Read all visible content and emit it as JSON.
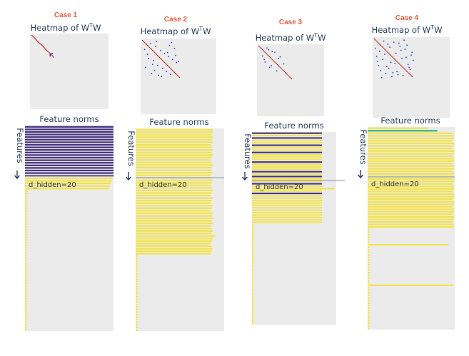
{
  "chart_data": [
    {
      "case_label": "Case 1",
      "heatmap": {
        "title": "Heatmap of W",
        "title_sup": "T",
        "title_tail": "W",
        "type": "heatmap",
        "diagonal_length": 20,
        "offdiag_points": [
          [
            16,
            17
          ],
          [
            17,
            16
          ],
          [
            18,
            16
          ],
          [
            16,
            18
          ]
        ]
      },
      "bars": {
        "type": "bar",
        "title": "Feature norms",
        "ylabel": "Features",
        "hline_label": "d_hidden=20",
        "values": [
          1.0,
          1.0,
          1.0,
          1.0,
          1.0,
          1.0,
          1.0,
          1.0,
          1.0,
          1.0,
          1.0,
          1.0,
          1.0,
          1.0,
          1.0,
          1.0,
          1.0,
          1.0,
          1.0,
          1.0,
          0.99,
          0.98,
          0.97,
          0.96,
          0.95,
          0.03,
          0.03,
          0.02,
          0.02,
          0.02,
          0.02,
          0.02,
          0.02,
          0.02,
          0.02,
          0.02,
          0.02,
          0.02,
          0.02,
          0.02,
          0.02,
          0.02,
          0.02,
          0.02,
          0.02,
          0.02,
          0.02,
          0.02,
          0.02,
          0.02,
          0.02,
          0.02,
          0.02,
          0.02,
          0.02,
          0.02,
          0.02,
          0.02,
          0.02,
          0.02,
          0.02,
          0.02,
          0.02,
          0.02,
          0.02,
          0.02,
          0.02,
          0.02,
          0.02,
          0.02,
          0.02,
          0.02,
          0.02,
          0.02,
          0.02,
          0.02,
          0.02,
          0.02,
          0.02,
          0.02
        ],
        "colors": [
          "#46327e",
          "#46327e",
          "#46327e",
          "#46327e",
          "#46327e",
          "#46327e",
          "#46327e",
          "#46327e",
          "#46327e",
          "#46327e",
          "#46327e",
          "#46327e",
          "#46327e",
          "#46327e",
          "#46327e",
          "#46327e",
          "#46327e",
          "#46327e",
          "#46327e",
          "#46327e",
          "#f2e34c",
          "#f2e34c",
          "#f2e34c",
          "#f2e34c",
          "#f2e34c"
        ]
      }
    },
    {
      "case_label": "Case 2",
      "heatmap": {
        "title": "Heatmap of W",
        "title_sup": "T",
        "title_tail": "W",
        "type": "heatmap",
        "diagonal_length": 38,
        "offdiag_points": [
          [
            2,
            9
          ],
          [
            5,
            14
          ],
          [
            8,
            3
          ],
          [
            11,
            20
          ],
          [
            13,
            6
          ],
          [
            15,
            25
          ],
          [
            18,
            10
          ],
          [
            20,
            28
          ],
          [
            22,
            13
          ],
          [
            24,
            31
          ],
          [
            26,
            16
          ],
          [
            28,
            34
          ],
          [
            30,
            19
          ],
          [
            32,
            8
          ],
          [
            34,
            22
          ],
          [
            3,
            27
          ],
          [
            9,
            33
          ],
          [
            14,
            1
          ],
          [
            19,
            36
          ],
          [
            27,
            5
          ],
          [
            6,
            18
          ],
          [
            10,
            24
          ],
          [
            25,
            12
          ],
          [
            29,
            2
          ],
          [
            33,
            15
          ],
          [
            36,
            21
          ],
          [
            12,
            30
          ],
          [
            16,
            35
          ]
        ]
      },
      "bars": {
        "type": "bar",
        "title": "Feature norms",
        "ylabel": "Features",
        "hline_label": "d_hidden=20",
        "values": [
          0.87,
          0.87,
          0.86,
          0.87,
          0.86,
          0.87,
          0.85,
          0.86,
          0.87,
          0.86,
          0.87,
          0.86,
          0.85,
          0.86,
          0.87,
          0.86,
          0.86,
          0.87,
          0.85,
          0.86,
          0.87,
          0.86,
          0.85,
          0.86,
          0.87,
          0.86,
          0.85,
          0.87,
          0.86,
          0.85,
          0.87,
          0.86,
          0.85,
          0.87,
          0.86,
          0.88,
          0.86,
          0.87,
          0.85,
          0.86,
          0.87,
          0.86,
          0.9,
          0.87,
          0.86,
          0.85,
          0.86,
          0.87,
          0.86,
          0.85,
          0.02,
          0.02,
          0.02,
          0.02,
          0.02,
          0.02,
          0.02,
          0.02,
          0.02,
          0.02,
          0.02,
          0.02,
          0.02,
          0.02,
          0.02,
          0.02,
          0.02,
          0.02,
          0.02,
          0.02,
          0.02,
          0.02,
          0.02,
          0.02,
          0.02,
          0.02,
          0.02,
          0.02,
          0.02,
          0.02
        ],
        "colors": [
          "#f2e34c"
        ]
      }
    },
    {
      "case_label": "Case 3",
      "heatmap": {
        "title": "Heatmap of W",
        "title_sup": "T",
        "title_tail": "W",
        "type": "heatmap",
        "diagonal_length": 38,
        "offdiag_points": [
          [
            4,
            11
          ],
          [
            11,
            4
          ],
          [
            7,
            18
          ],
          [
            18,
            7
          ],
          [
            12,
            24
          ],
          [
            24,
            12
          ],
          [
            15,
            6
          ],
          [
            6,
            15
          ],
          [
            20,
            28
          ],
          [
            28,
            20
          ],
          [
            9,
            2
          ],
          [
            22,
            14
          ],
          [
            14,
            22
          ]
        ]
      },
      "bars": {
        "type": "bar",
        "title": "Feature norms",
        "ylabel": "Features",
        "hline_label": "d_hidden=20",
        "values": [
          0.83,
          0.83,
          0.83,
          0.83,
          0.83,
          0.83,
          0.83,
          0.83,
          0.83,
          0.83,
          0.83,
          0.83,
          0.83,
          0.83,
          0.83,
          0.83,
          0.83,
          0.83,
          0.83,
          0.83,
          0.83,
          0.83,
          0.83,
          0.98,
          0.83,
          0.83,
          0.83,
          0.83,
          0.83,
          0.83,
          0.83,
          0.83,
          0.83,
          0.83,
          0.83,
          0.83,
          0.83,
          0.83,
          0.02,
          0.02,
          0.02,
          0.02,
          0.02,
          0.02,
          0.02,
          0.02,
          0.02,
          0.02,
          0.02,
          0.02,
          0.02,
          0.02,
          0.02,
          0.02,
          0.02,
          0.02,
          0.02,
          0.02,
          0.02,
          0.02,
          0.02,
          0.02,
          0.02,
          0.02,
          0.02,
          0.02,
          0.02,
          0.02,
          0.02,
          0.02,
          0.02,
          0.02,
          0.02,
          0.02,
          0.02,
          0.02,
          0.02,
          0.02,
          0.02,
          0.02
        ],
        "colors": [
          "#46327e",
          "#f2e34c",
          "#46327e",
          "#f2e34c",
          "#f2e34c",
          "#46327e",
          "#f2e34c",
          "#f2e34c",
          "#46327e",
          "#f2e34c",
          "#f2e34c",
          "#f2e34c",
          "#46327e",
          "#f2e34c",
          "#f2e34c",
          "#f2e34c",
          "#46327e",
          "#f2e34c",
          "#46327e",
          "#f2e34c",
          "#f2e34c",
          "#46327e",
          "#f2e34c",
          "#f2e34c",
          "#f2e34c",
          "#46327e",
          "#f2e34c",
          "#f2e34c",
          "#f2e34c",
          "#f2e34c",
          "#f2e34c",
          "#f2e34c",
          "#f2e34c",
          "#f2e34c",
          "#f2e34c",
          "#f2e34c",
          "#f2e34c",
          "#f2e34c"
        ]
      }
    },
    {
      "case_label": "Case 4",
      "heatmap": {
        "title": "Heatmap of W",
        "title_sup": "T",
        "title_tail": "W",
        "type": "heatmap",
        "diagonal_length": 38,
        "offdiag_points": [
          [
            3,
            22
          ],
          [
            6,
            31
          ],
          [
            9,
            2
          ],
          [
            12,
            27
          ],
          [
            15,
            8
          ],
          [
            18,
            33
          ],
          [
            21,
            14
          ],
          [
            24,
            4
          ],
          [
            27,
            19
          ],
          [
            30,
            10
          ],
          [
            33,
            25
          ],
          [
            36,
            16
          ],
          [
            5,
            12
          ],
          [
            14,
            29
          ],
          [
            23,
            35
          ],
          [
            32,
            6
          ],
          [
            8,
            20
          ],
          [
            17,
            37
          ],
          [
            26,
            11
          ],
          [
            35,
            30
          ],
          [
            2,
            17
          ],
          [
            11,
            34
          ],
          [
            20,
            24
          ],
          [
            29,
            1
          ],
          [
            38,
            21
          ],
          [
            1,
            9
          ],
          [
            10,
            15
          ],
          [
            19,
            3
          ],
          [
            28,
            36
          ],
          [
            37,
            13
          ],
          [
            4,
            26
          ],
          [
            13,
            5
          ],
          [
            22,
            32
          ],
          [
            31,
            18
          ],
          [
            7,
            38
          ],
          [
            16,
            23
          ],
          [
            25,
            7
          ],
          [
            34,
            28
          ]
        ]
      },
      "bars": {
        "type": "bar",
        "title": "Feature norms",
        "ylabel": "Features",
        "hline_label": "d_hidden=20",
        "values": [
          0.69,
          0.8,
          0.98,
          0.99,
          0.99,
          0.98,
          0.99,
          0.99,
          0.98,
          0.99,
          0.99,
          0.98,
          0.99,
          0.99,
          0.98,
          0.99,
          0.99,
          0.98,
          0.99,
          0.98,
          0.99,
          0.99,
          0.98,
          0.99,
          0.99,
          0.98,
          0.99,
          0.99,
          0.98,
          0.99,
          0.99,
          0.98,
          0.99,
          0.99,
          0.98,
          0.99,
          0.99,
          0.98,
          0.99,
          0.99,
          0.02,
          0.02,
          0.02,
          0.02,
          0.02,
          0.02,
          0.93,
          0.02,
          0.02,
          0.02,
          0.02,
          0.02,
          0.02,
          0.02,
          0.02,
          0.02,
          0.02,
          0.02,
          0.02,
          0.02,
          0.02,
          0.02,
          0.98,
          0.02,
          0.02,
          0.02,
          0.02,
          0.02,
          0.02,
          0.02,
          0.02,
          0.02,
          0.02,
          0.02,
          0.02,
          0.02,
          0.02,
          0.02,
          0.02,
          0.02
        ],
        "colors": [
          "#f2e34c",
          "#2fb47c",
          "#f2e34c"
        ]
      }
    }
  ],
  "palette": {
    "panel_bg": "#ebebeb",
    "diag": "#c41e1e",
    "offdiag": "#2b43c9",
    "purple": "#46327e",
    "yellow": "#f2e34c",
    "teal": "#2fb47c",
    "hline": "#8a90b0"
  }
}
